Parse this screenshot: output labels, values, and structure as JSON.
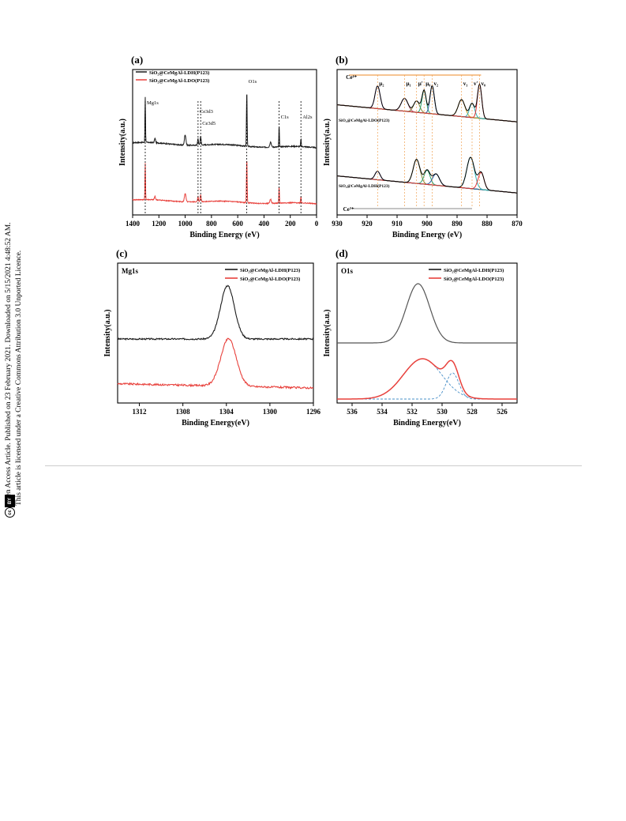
{
  "side_text": {
    "line1": "Open Access Article. Published on 23 February 2021. Downloaded on 5/15/2021 4:48:52 AM.",
    "line2": "This article is licensed under a Creative Commons Attribution 3.0 Unported Licence.",
    "cc_label": "cc",
    "by_label": "BY"
  },
  "series_colors": {
    "ldh": "#1a1a1a",
    "ldo": "#e8413c",
    "fit_bg": "#8a8a3a",
    "dashed_fit": "#4a90c8"
  },
  "chart_data": [
    {
      "panel": "(a)",
      "type": "line",
      "xlabel": "Binding Energy (eV)",
      "ylabel": "Intensity(a.u.)",
      "xlim": [
        1400,
        0
      ],
      "x_ticks": [
        1400,
        1200,
        1000,
        800,
        600,
        400,
        200,
        0
      ],
      "legend": [
        "SiO₂@CeMgAl-LDH(P123)",
        "SiO₂@CeMgAl-LDO(P123)"
      ],
      "legend_position": "top-left",
      "annotations": [
        {
          "label": "Mg1s",
          "x": 1304
        },
        {
          "label": "Ce3d3",
          "x": 902
        },
        {
          "label": "Ce3d5",
          "x": 882
        },
        {
          "label": "O1s",
          "x": 531
        },
        {
          "label": "C1s",
          "x": 285
        },
        {
          "label": "Al2s",
          "x": 119
        }
      ],
      "series": [
        {
          "name": "SiO₂@CeMgAl-LDH(P123)",
          "peaks_eV": [
            1304,
            1000,
            902,
            882,
            531,
            285,
            119
          ]
        },
        {
          "name": "SiO₂@CeMgAl-LDO(P123)",
          "peaks_eV": [
            1304,
            1000,
            902,
            882,
            531,
            285,
            119
          ]
        }
      ]
    },
    {
      "panel": "(b)",
      "type": "line",
      "xlabel": "Binding Energy (eV)",
      "ylabel": "Intensity(a.u.)",
      "xlim": [
        930,
        870
      ],
      "x_ticks": [
        930,
        920,
        910,
        900,
        890,
        880,
        870
      ],
      "state_labels": {
        "ce4": "Ce⁴⁺",
        "ce3": "Ce³⁺"
      },
      "curve_labels": [
        "SiO₂@CeMgAl-LDO(P123)",
        "SiO₂@CeMgAl-LDH(P123)"
      ],
      "peak_labels": [
        {
          "label": "µ₂",
          "x": 916.5
        },
        {
          "label": "µ₁",
          "x": 907.5
        },
        {
          "label": "µ₀",
          "x": 901.0
        },
        {
          "label": "µ'",
          "x": 903.5
        },
        {
          "label": "v₂",
          "x": 898.3
        },
        {
          "label": "v₁",
          "x": 888.5
        },
        {
          "label": "v'",
          "x": 885.0
        },
        {
          "label": "v₀",
          "x": 882.5
        }
      ]
    },
    {
      "panel": "(c)",
      "type": "line",
      "title": "Mg1s",
      "xlabel": "Binding Energy(eV)",
      "ylabel": "Intensity(a.u.)",
      "xlim": [
        1314,
        1296
      ],
      "x_ticks": [
        1312,
        1308,
        1304,
        1300,
        1296
      ],
      "legend": [
        "SiO₂@CeMgAl-LDH(P123)",
        "SiO₂@CeMgAl-LDO(P123)"
      ],
      "legend_position": "top-right",
      "series": [
        {
          "name": "SiO₂@CeMgAl-LDH(P123)",
          "peak_x": 1303.9
        },
        {
          "name": "SiO₂@CeMgAl-LDO(P123)",
          "peak_x": 1303.8
        }
      ]
    },
    {
      "panel": "(d)",
      "type": "line",
      "title": "O1s",
      "xlabel": "Binding Energy(eV)",
      "ylabel": "Intensity(a.u.)",
      "xlim": [
        537,
        525
      ],
      "x_ticks": [
        536,
        534,
        532,
        530,
        528,
        526
      ],
      "legend": [
        "SiO₂@CeMgAl-LDH(P123)",
        "SiO₂@CeMgAl-LDO(P123)"
      ],
      "legend_position": "top-right",
      "series": [
        {
          "name": "SiO₂@CeMgAl-LDH(P123)",
          "peak_x": 531.6
        },
        {
          "name": "SiO₂@CeMgAl-LDO(P123)",
          "peak_x": [
            531.3,
            529.3
          ]
        }
      ]
    }
  ]
}
